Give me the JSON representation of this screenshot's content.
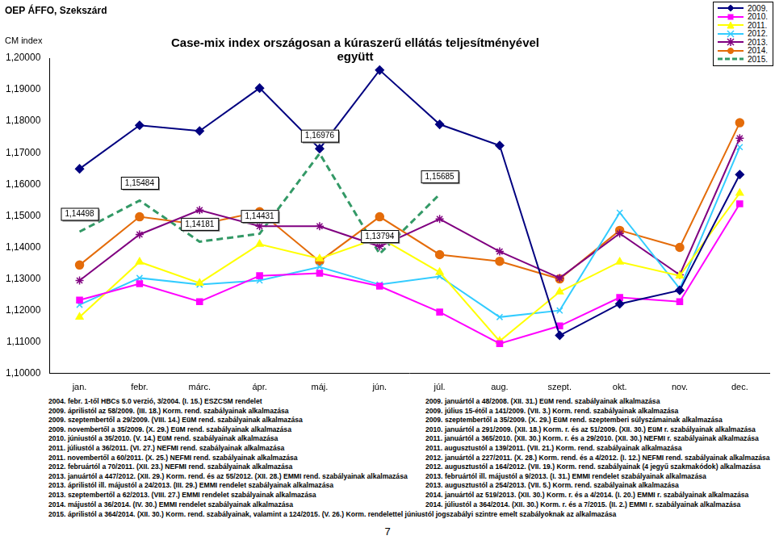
{
  "chart_data": {
    "type": "line",
    "header": "OEP ÁFFO, Szekszárd",
    "title": "Case-mix index országosan a kúraszerű ellátás teljesítményével együtt",
    "y_label": "CM index",
    "categories": [
      "jan.",
      "febr.",
      "márc.",
      "ápr.",
      "máj.",
      "jún.",
      "júl.",
      "aug.",
      "szept.",
      "okt.",
      "nov.",
      "dec."
    ],
    "series": [
      {
        "name": "2009.",
        "color": "#000080",
        "marker": "diamond",
        "line_style": "solid",
        "values": [
          1.1649,
          1.1787,
          1.1769,
          1.1905,
          1.1713,
          1.1962,
          1.179,
          1.1723,
          1.1121,
          1.1221,
          1.1264,
          1.1631
        ]
      },
      {
        "name": "2010.",
        "color": "#ff00ff",
        "marker": "square",
        "line_style": "solid",
        "values": [
          1.1233,
          1.1285,
          1.1228,
          1.131,
          1.1318,
          1.1277,
          1.1195,
          1.1095,
          1.1151,
          1.1241,
          1.1228,
          1.1538
        ]
      },
      {
        "name": "2011.",
        "color": "#ffff00",
        "marker": "triangle",
        "line_style": "solid",
        "values": [
          1.1179,
          1.1354,
          1.1287,
          1.141,
          1.1364,
          1.1431,
          1.1321,
          1.1103,
          1.1259,
          1.1354,
          1.131,
          1.1572
        ]
      },
      {
        "name": "2012.",
        "color": "#33ccff",
        "marker": "x",
        "line_style": "solid",
        "values": [
          1.1218,
          1.1303,
          1.1282,
          1.1295,
          1.1338,
          1.1282,
          1.1308,
          1.1179,
          1.12,
          1.151,
          1.1269,
          1.1718
        ]
      },
      {
        "name": "2013.",
        "color": "#800080",
        "marker": "star",
        "line_style": "solid",
        "values": [
          1.1295,
          1.1441,
          1.1518,
          1.1467,
          1.1467,
          1.1403,
          1.149,
          1.1387,
          1.1303,
          1.1444,
          1.1313,
          1.1746
        ]
      },
      {
        "name": "2014.",
        "color": "#e46c0a",
        "marker": "circle",
        "line_style": "solid",
        "values": [
          1.1344,
          1.1497,
          1.1472,
          1.1513,
          1.1356,
          1.1497,
          1.1377,
          1.1356,
          1.13,
          1.1454,
          1.14,
          1.1795
        ]
      },
      {
        "name": "2015.",
        "color": "#339966",
        "marker": "none",
        "line_style": "dashed",
        "values": [
          1.14498,
          1.15484,
          1.14181,
          1.14431,
          1.16976,
          1.13794,
          1.15685,
          null,
          null,
          null,
          null,
          null
        ],
        "value_labels": [
          "1,14498",
          "1,15484",
          "1,14181",
          "1,14431",
          "1,16976",
          "1,13794",
          "1,15685",
          null,
          null,
          null,
          null,
          null
        ]
      }
    ],
    "ylim": [
      1.1,
      1.2
    ],
    "yticks": [
      {
        "value": 1.1,
        "label": "1,10000"
      },
      {
        "value": 1.11,
        "label": "1,11000"
      },
      {
        "value": 1.12,
        "label": "1,12000"
      },
      {
        "value": 1.13,
        "label": "1,13000"
      },
      {
        "value": 1.14,
        "label": "1,14000"
      },
      {
        "value": 1.15,
        "label": "1,15000"
      },
      {
        "value": 1.16,
        "label": "1,16000"
      },
      {
        "value": 1.17,
        "label": "1,17000"
      },
      {
        "value": 1.18,
        "label": "1,18000"
      },
      {
        "value": 1.19,
        "label": "1,19000"
      },
      {
        "value": 1.2,
        "label": "1,20000"
      }
    ],
    "grid": false,
    "legend": "top-right",
    "data_labels": true,
    "notes": {
      "left": [
        "2004. febr. 1-től HBCs 5.0 verzió, 3/2004. (I. 15.) ESZCSM rendelet",
        "2009. áprilistól az 58/2009. (III. 18.) Korm. rend. szabályainak alkalmazása",
        "2009. szeptembertől a 29/2009. (VIII. 14.) EüM rend. szabályainak alkalmazása",
        "2009. novembertől a 35/2009. (X. 29.) EüM rend. szabályainak alkalmazása",
        "2010. júniustól a 35/2010. (V. 14.) EüM rend. szabályainak alkalmazása",
        "2011. júliustól a 36/2011. (VI. 27.) NEFMI rend. szabályainak alkalmazása",
        "2011. novembertől a 60/2011. (X. 25.) NEFMI rend. szabályainak alkalmazása",
        "2012. februártól a 70/2011. (XII. 23.) NEFMI rend. szabályainak alkalmazása",
        "2013. januártól a 447/2012. (XII. 29.) Korm. rend. és az 55/2012. (XII. 28.) EMMI rend. szabályainak alkalmazása",
        "2013. áprilistól ill. májustól a 24/2013. (III. 29.) EMMI rendelet szabályainak alkalmazása",
        "2013. szeptembertől a 62/2013. (VIII. 27.) EMMI rendelet szabályainak alkalmazása",
        "2014. májustól a 36/2014. (IV. 30.) EMMI rendelet szabályainak alkalmazása"
      ],
      "right": [
        "2009. januártól a 48/2008. (XII. 31.) EüM rend. szabályainak alkalmazása",
        "2009. július 15-étől a 141/2009. (VII. 3.) Korm. rend. szabályainak alkalmazása",
        "2009. szeptembertől a 35/2009. (X. 29.) EüM rend. szeptemberi súlyszámainak alkalmazása",
        "2010. januártól a 291/2009. (XII. 18.) Korm. r. és az 51/2009. (XII. 30.) EüM r. szabályainak alkalmazása",
        "2011. januártól a 365/2010. (XII. 30.) Korm. r. és a 29/2010. (XII. 30.) NEFMI r. szabályainak alkalmazása",
        "2011. augusztustól a 139/2011. (VII. 21.) Korm. rend. szabályainak alkalmazása",
        "2012. januártól a 227/2011. (X. 28.) Korm. rend. és a 4/2012. (I. 12.) NEFMI rend. szabályainak alkalmazása",
        "2012. augusztustól a 164/2012. (VII. 19.) Korm. rend. szabályainak (4 jegyű szakmakódok) alkalmazása",
        "2013. februártól ill. májustól a 9/2013. (I. 31.) EMMI rendelet szabályainak alkalmazása",
        "2013. augusztustól a 254/2013. (VII. 5.) Korm. rend. szabályainak alkalmazása",
        "2014. januártól az 519/2013. (XII. 30.) Korm. r. és a 4/2014. (I. 20.) EMMI r. szabályainak alkalmazása",
        "2014. júliustól a 364/2014. (XII. 30.) Korm. r. és a 7/2015. (II. 2.) EMMI r. szabályainak alkalmazása"
      ],
      "bottom": "2015. áprilistól a 364/2014. (XII. 30.) Korm. rend. szabályainak, valamint a 124/2015. (V. 26.) Korm. rendelettel júniustól jogszabályi szintre emelt szabályoknak az alkalmazása"
    },
    "page": "7"
  }
}
